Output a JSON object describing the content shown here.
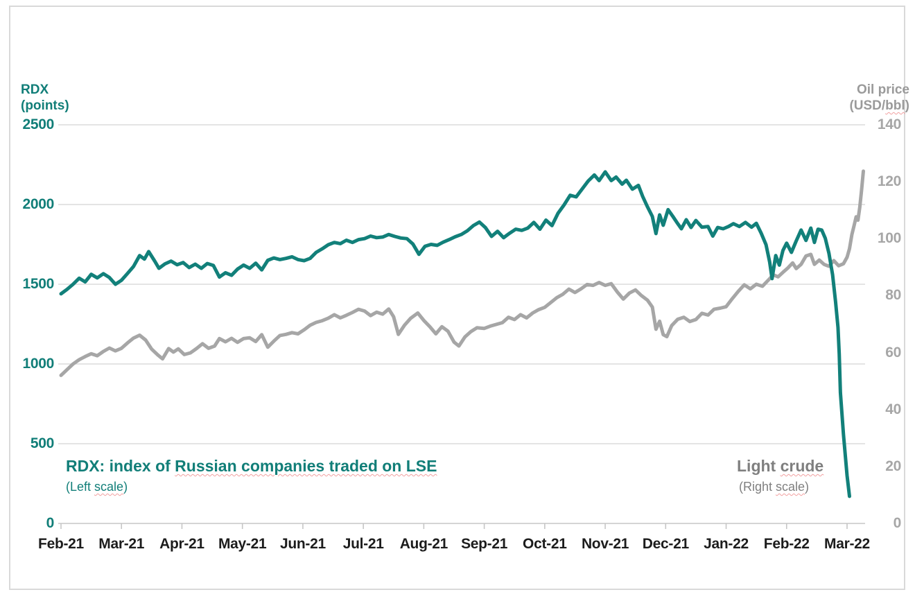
{
  "slide": {
    "background": "#ffffff",
    "border_color": "#d9d9d9"
  },
  "left_axis_title": {
    "line1": "RDX",
    "line2": "(points)",
    "color": "#117e78"
  },
  "right_axis_title": {
    "line1": "Oil price",
    "line2_pre": "(USD/",
    "line2_wavy": "bbl",
    "line2_post": ")",
    "color": "#9a9a9a"
  },
  "captions": {
    "rdx": {
      "pre": "RDX: index of ",
      "wavy": "Russian companies traded on LSE",
      "sub_pre": "(Left ",
      "sub_wavy": "scale",
      "sub_post": ")",
      "color": "#117e78"
    },
    "oil": {
      "pre": "Light ",
      "wavy": "crude",
      "sub_pre": "(Right ",
      "sub_wavy": "scale",
      "sub_post": ")",
      "color": "#7f7f7f"
    }
  },
  "chart_data": {
    "type": "line",
    "x_categories": [
      "Feb-21",
      "Mar-21",
      "Apr-21",
      "May-21",
      "Jun-21",
      "Jul-21",
      "Aug-21",
      "Sep-21",
      "Oct-21",
      "Nov-21",
      "Dec-21",
      "Jan-22",
      "Feb-22",
      "Mar-22"
    ],
    "x_unit": "month index, 0 = Feb-21 tick; fractional values are weeks within the month",
    "grid": "horizontal",
    "gridline_color": "#dcdcdc",
    "axis_line_color": "#c6c6c6",
    "left_axis": {
      "label": "RDX (points)",
      "range": [
        0,
        2500
      ],
      "ticks": [
        0,
        500,
        1000,
        1500,
        2000,
        2500
      ],
      "color": "#117e78"
    },
    "right_axis": {
      "label": "Oil price (USD/bbl)",
      "range": [
        0,
        140
      ],
      "ticks": [
        0,
        20,
        40,
        60,
        80,
        100,
        120,
        140
      ],
      "color": "#a6a6a6"
    },
    "series": [
      {
        "name": "RDX: index of Russian companies traded on LSE",
        "scale": "left",
        "color": "#12807a",
        "stroke_width": 5,
        "points": [
          [
            0,
            1440
          ],
          [
            0.1,
            1468
          ],
          [
            0.2,
            1500
          ],
          [
            0.3,
            1538
          ],
          [
            0.4,
            1515
          ],
          [
            0.5,
            1562
          ],
          [
            0.6,
            1540
          ],
          [
            0.7,
            1566
          ],
          [
            0.8,
            1542
          ],
          [
            0.9,
            1500
          ],
          [
            1,
            1525
          ],
          [
            1.1,
            1568
          ],
          [
            1.2,
            1612
          ],
          [
            1.3,
            1680
          ],
          [
            1.38,
            1658
          ],
          [
            1.45,
            1705
          ],
          [
            1.55,
            1645
          ],
          [
            1.62,
            1600
          ],
          [
            1.72,
            1628
          ],
          [
            1.82,
            1645
          ],
          [
            1.92,
            1622
          ],
          [
            2.02,
            1636
          ],
          [
            2.12,
            1605
          ],
          [
            2.22,
            1626
          ],
          [
            2.32,
            1600
          ],
          [
            2.42,
            1630
          ],
          [
            2.52,
            1618
          ],
          [
            2.62,
            1545
          ],
          [
            2.72,
            1572
          ],
          [
            2.82,
            1556
          ],
          [
            2.92,
            1595
          ],
          [
            3.02,
            1620
          ],
          [
            3.12,
            1600
          ],
          [
            3.22,
            1632
          ],
          [
            3.32,
            1590
          ],
          [
            3.42,
            1650
          ],
          [
            3.52,
            1665
          ],
          [
            3.62,
            1655
          ],
          [
            3.72,
            1662
          ],
          [
            3.82,
            1672
          ],
          [
            3.92,
            1655
          ],
          [
            4.02,
            1648
          ],
          [
            4.12,
            1662
          ],
          [
            4.22,
            1700
          ],
          [
            4.32,
            1722
          ],
          [
            4.42,
            1748
          ],
          [
            4.52,
            1762
          ],
          [
            4.62,
            1755
          ],
          [
            4.72,
            1776
          ],
          [
            4.82,
            1762
          ],
          [
            4.92,
            1780
          ],
          [
            5.02,
            1786
          ],
          [
            5.12,
            1802
          ],
          [
            5.22,
            1792
          ],
          [
            5.32,
            1796
          ],
          [
            5.42,
            1812
          ],
          [
            5.52,
            1800
          ],
          [
            5.62,
            1790
          ],
          [
            5.72,
            1786
          ],
          [
            5.82,
            1752
          ],
          [
            5.92,
            1688
          ],
          [
            6.02,
            1738
          ],
          [
            6.12,
            1750
          ],
          [
            6.22,
            1744
          ],
          [
            6.32,
            1764
          ],
          [
            6.42,
            1780
          ],
          [
            6.52,
            1798
          ],
          [
            6.62,
            1812
          ],
          [
            6.72,
            1835
          ],
          [
            6.82,
            1868
          ],
          [
            6.92,
            1890
          ],
          [
            7.02,
            1855
          ],
          [
            7.12,
            1800
          ],
          [
            7.22,
            1832
          ],
          [
            7.32,
            1792
          ],
          [
            7.42,
            1820
          ],
          [
            7.52,
            1845
          ],
          [
            7.62,
            1838
          ],
          [
            7.72,
            1852
          ],
          [
            7.82,
            1888
          ],
          [
            7.92,
            1845
          ],
          [
            8.02,
            1902
          ],
          [
            8.12,
            1868
          ],
          [
            8.22,
            1945
          ],
          [
            8.32,
            1998
          ],
          [
            8.42,
            2058
          ],
          [
            8.52,
            2048
          ],
          [
            8.62,
            2098
          ],
          [
            8.72,
            2148
          ],
          [
            8.82,
            2185
          ],
          [
            8.9,
            2150
          ],
          [
            9,
            2205
          ],
          [
            9.1,
            2150
          ],
          [
            9.18,
            2172
          ],
          [
            9.28,
            2128
          ],
          [
            9.35,
            2152
          ],
          [
            9.45,
            2096
          ],
          [
            9.55,
            2120
          ],
          [
            9.62,
            2050
          ],
          [
            9.7,
            1985
          ],
          [
            9.78,
            1925
          ],
          [
            9.84,
            1818
          ],
          [
            9.9,
            1935
          ],
          [
            9.96,
            1870
          ],
          [
            10.04,
            1968
          ],
          [
            10.12,
            1925
          ],
          [
            10.2,
            1880
          ],
          [
            10.26,
            1848
          ],
          [
            10.34,
            1905
          ],
          [
            10.42,
            1856
          ],
          [
            10.5,
            1900
          ],
          [
            10.6,
            1858
          ],
          [
            10.7,
            1862
          ],
          [
            10.78,
            1802
          ],
          [
            10.86,
            1856
          ],
          [
            10.95,
            1848
          ],
          [
            11.04,
            1862
          ],
          [
            11.12,
            1880
          ],
          [
            11.22,
            1862
          ],
          [
            11.32,
            1888
          ],
          [
            11.42,
            1858
          ],
          [
            11.5,
            1882
          ],
          [
            11.58,
            1820
          ],
          [
            11.66,
            1748
          ],
          [
            11.72,
            1640
          ],
          [
            11.76,
            1535
          ],
          [
            11.82,
            1680
          ],
          [
            11.88,
            1620
          ],
          [
            11.94,
            1712
          ],
          [
            12,
            1758
          ],
          [
            12.08,
            1700
          ],
          [
            12.16,
            1772
          ],
          [
            12.24,
            1840
          ],
          [
            12.32,
            1775
          ],
          [
            12.4,
            1852
          ],
          [
            12.46,
            1762
          ],
          [
            12.52,
            1845
          ],
          [
            12.58,
            1840
          ],
          [
            12.64,
            1788
          ],
          [
            12.7,
            1695
          ],
          [
            12.76,
            1560
          ],
          [
            12.81,
            1390
          ],
          [
            12.85,
            1230
          ],
          [
            12.87,
            1062
          ],
          [
            12.89,
            820
          ],
          [
            12.94,
            558
          ],
          [
            13,
            300
          ],
          [
            13.04,
            170
          ]
        ]
      },
      {
        "name": "Light crude",
        "scale": "right",
        "color": "#a6a6a6",
        "stroke_width": 5,
        "points": [
          [
            0,
            52
          ],
          [
            0.1,
            54
          ],
          [
            0.2,
            56
          ],
          [
            0.3,
            57.5
          ],
          [
            0.4,
            58.6
          ],
          [
            0.5,
            59.6
          ],
          [
            0.6,
            58.9
          ],
          [
            0.7,
            60.4
          ],
          [
            0.8,
            61.6
          ],
          [
            0.9,
            60.6
          ],
          [
            1,
            61.5
          ],
          [
            1.1,
            63.4
          ],
          [
            1.2,
            65.1
          ],
          [
            1.3,
            66.1
          ],
          [
            1.4,
            64.4
          ],
          [
            1.5,
            61.2
          ],
          [
            1.6,
            59.2
          ],
          [
            1.68,
            57.8
          ],
          [
            1.78,
            61.4
          ],
          [
            1.86,
            60.2
          ],
          [
            1.94,
            61.3
          ],
          [
            2.04,
            59.3
          ],
          [
            2.14,
            59.9
          ],
          [
            2.24,
            61.4
          ],
          [
            2.34,
            63.1
          ],
          [
            2.44,
            61.5
          ],
          [
            2.54,
            62.3
          ],
          [
            2.62,
            64.9
          ],
          [
            2.72,
            63.8
          ],
          [
            2.82,
            65
          ],
          [
            2.92,
            63.6
          ],
          [
            3.02,
            64.9
          ],
          [
            3.12,
            65.2
          ],
          [
            3.22,
            63.9
          ],
          [
            3.32,
            66.3
          ],
          [
            3.42,
            61.9
          ],
          [
            3.52,
            64
          ],
          [
            3.62,
            66
          ],
          [
            3.72,
            66.4
          ],
          [
            3.82,
            67
          ],
          [
            3.92,
            66.6
          ],
          [
            4.02,
            68
          ],
          [
            4.12,
            69.6
          ],
          [
            4.22,
            70.6
          ],
          [
            4.32,
            71.2
          ],
          [
            4.42,
            72.1
          ],
          [
            4.52,
            73.3
          ],
          [
            4.62,
            72.2
          ],
          [
            4.72,
            73.1
          ],
          [
            4.82,
            74.1
          ],
          [
            4.92,
            75.2
          ],
          [
            5.02,
            74.6
          ],
          [
            5.12,
            73
          ],
          [
            5.22,
            74.2
          ],
          [
            5.32,
            73.5
          ],
          [
            5.42,
            75.3
          ],
          [
            5.5,
            72.6
          ],
          [
            5.58,
            66.4
          ],
          [
            5.68,
            69.6
          ],
          [
            5.78,
            72
          ],
          [
            5.9,
            73.9
          ],
          [
            6,
            71.3
          ],
          [
            6.1,
            69.1
          ],
          [
            6.2,
            66.6
          ],
          [
            6.3,
            69.1
          ],
          [
            6.4,
            67.5
          ],
          [
            6.5,
            63.7
          ],
          [
            6.58,
            62.3
          ],
          [
            6.68,
            65.5
          ],
          [
            6.78,
            67.4
          ],
          [
            6.88,
            68.7
          ],
          [
            7,
            68.5
          ],
          [
            7.1,
            69.3
          ],
          [
            7.2,
            69.9
          ],
          [
            7.3,
            70.5
          ],
          [
            7.4,
            72.4
          ],
          [
            7.5,
            71.6
          ],
          [
            7.6,
            73.3
          ],
          [
            7.7,
            72.2
          ],
          [
            7.8,
            73.9
          ],
          [
            7.9,
            75.1
          ],
          [
            8,
            75.9
          ],
          [
            8.1,
            77.6
          ],
          [
            8.2,
            79.3
          ],
          [
            8.3,
            80.5
          ],
          [
            8.4,
            82.3
          ],
          [
            8.5,
            81.1
          ],
          [
            8.6,
            82.4
          ],
          [
            8.7,
            83.9
          ],
          [
            8.8,
            83.6
          ],
          [
            8.9,
            84.6
          ],
          [
            9,
            83.6
          ],
          [
            9.1,
            84.2
          ],
          [
            9.2,
            81.3
          ],
          [
            9.3,
            78.8
          ],
          [
            9.4,
            80.9
          ],
          [
            9.5,
            82
          ],
          [
            9.6,
            80
          ],
          [
            9.7,
            78.4
          ],
          [
            9.78,
            76
          ],
          [
            9.84,
            68.2
          ],
          [
            9.9,
            71
          ],
          [
            9.96,
            66.3
          ],
          [
            10.02,
            65.6
          ],
          [
            10.1,
            69.5
          ],
          [
            10.2,
            71.7
          ],
          [
            10.3,
            72.4
          ],
          [
            10.4,
            70.9
          ],
          [
            10.5,
            71.6
          ],
          [
            10.6,
            73.8
          ],
          [
            10.7,
            73.2
          ],
          [
            10.8,
            75.2
          ],
          [
            10.9,
            75.6
          ],
          [
            11,
            76.1
          ],
          [
            11.1,
            78.9
          ],
          [
            11.2,
            81.5
          ],
          [
            11.3,
            83.8
          ],
          [
            11.4,
            82.4
          ],
          [
            11.5,
            84
          ],
          [
            11.6,
            83.3
          ],
          [
            11.7,
            85.5
          ],
          [
            11.78,
            87.3
          ],
          [
            11.86,
            86.6
          ],
          [
            11.94,
            88.2
          ],
          [
            12.02,
            89.7
          ],
          [
            12.1,
            91.5
          ],
          [
            12.16,
            89.5
          ],
          [
            12.24,
            91
          ],
          [
            12.32,
            93.9
          ],
          [
            12.4,
            94.5
          ],
          [
            12.46,
            91
          ],
          [
            12.54,
            92.5
          ],
          [
            12.62,
            91
          ],
          [
            12.7,
            90.3
          ],
          [
            12.78,
            92.3
          ],
          [
            12.86,
            90.5
          ],
          [
            12.94,
            91.2
          ],
          [
            13,
            93.5
          ],
          [
            13.04,
            96.5
          ],
          [
            13.08,
            101.5
          ],
          [
            13.12,
            105
          ],
          [
            13.15,
            107.7
          ],
          [
            13.18,
            106.5
          ],
          [
            13.21,
            111
          ],
          [
            13.24,
            117
          ],
          [
            13.27,
            123.7
          ]
        ]
      }
    ]
  }
}
